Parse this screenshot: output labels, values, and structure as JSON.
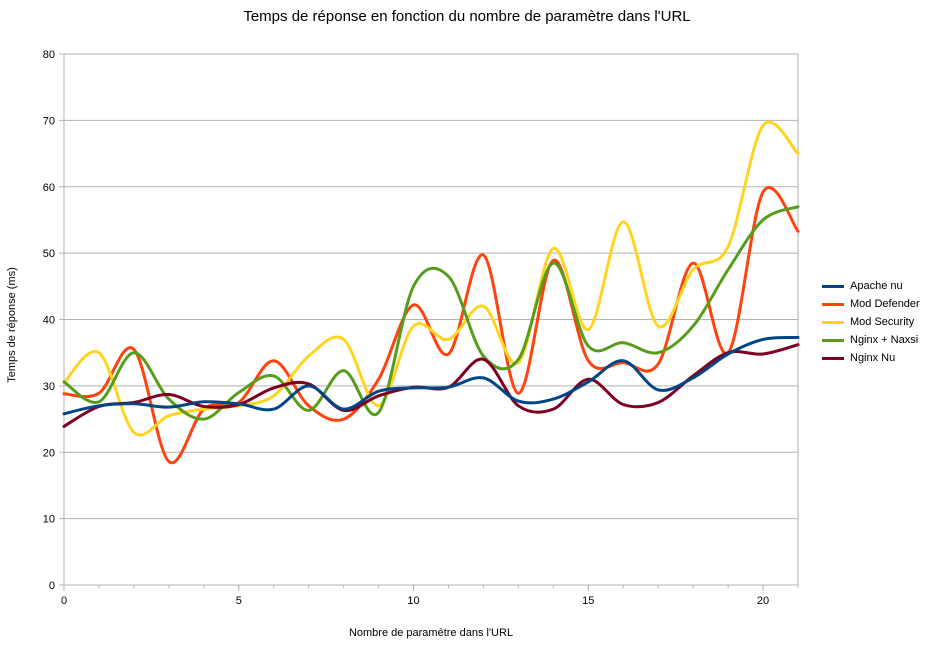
{
  "chart_data": {
    "type": "line",
    "title": "Temps de réponse en fonction du nombre de paramètre dans l'URL",
    "xlabel": "Nombre de paramètre dans l'URL",
    "ylabel": "Temps de réponse (ms)",
    "xlim": [
      0,
      21
    ],
    "ylim": [
      0,
      80
    ],
    "xticks": [
      0,
      5,
      10,
      15,
      20
    ],
    "yticks": [
      0,
      10,
      20,
      30,
      40,
      50,
      60,
      70,
      80
    ],
    "grid": "horizontal",
    "legend_position": "right",
    "x": [
      0,
      1,
      2,
      3,
      4,
      5,
      6,
      7,
      8,
      9,
      10,
      11,
      12,
      13,
      14,
      15,
      16,
      17,
      18,
      19,
      20,
      21
    ],
    "series": [
      {
        "name": "Apache nu",
        "color": "#004586",
        "values": [
          25.8,
          27.0,
          27.3,
          26.8,
          27.6,
          27.3,
          26.5,
          30.0,
          26.5,
          29.2,
          29.7,
          29.8,
          31.2,
          27.7,
          28.0,
          30.6,
          33.8,
          29.4,
          31.2,
          34.8,
          37.0,
          37.3
        ]
      },
      {
        "name": "Mod Defender",
        "color": "#ff420e",
        "values": [
          28.8,
          28.9,
          35.5,
          18.6,
          26.5,
          27.5,
          33.8,
          27.0,
          25.0,
          31.0,
          42.2,
          34.8,
          49.7,
          28.9,
          48.9,
          33.8,
          33.5,
          33.3,
          48.5,
          35.0,
          59.2,
          53.3
        ]
      },
      {
        "name": "Mod Security",
        "color": "#ffd320",
        "values": [
          30.5,
          35.0,
          23.0,
          25.5,
          26.5,
          27.0,
          28.5,
          34.5,
          37.0,
          27.0,
          39.0,
          37.0,
          42.0,
          33.5,
          50.7,
          38.5,
          54.7,
          39.0,
          47.5,
          51.0,
          69.2,
          65.0
        ]
      },
      {
        "name": "Nginx + Naxsi",
        "color": "#579d1c",
        "values": [
          30.6,
          27.6,
          35.0,
          28.0,
          25.0,
          29.0,
          31.5,
          26.3,
          32.3,
          26.0,
          45.0,
          46.5,
          34.5,
          34.0,
          48.5,
          36.0,
          36.5,
          35.0,
          39.0,
          47.5,
          55.0,
          57.0
        ]
      },
      {
        "name": "Nginx Nu",
        "color": "#7e0021",
        "values": [
          23.9,
          26.9,
          27.5,
          28.7,
          26.9,
          27.2,
          29.7,
          30.3,
          26.3,
          28.5,
          29.8,
          29.8,
          34.0,
          27.0,
          26.5,
          31.0,
          27.2,
          27.5,
          31.5,
          35.0,
          34.8,
          36.2
        ]
      }
    ]
  }
}
